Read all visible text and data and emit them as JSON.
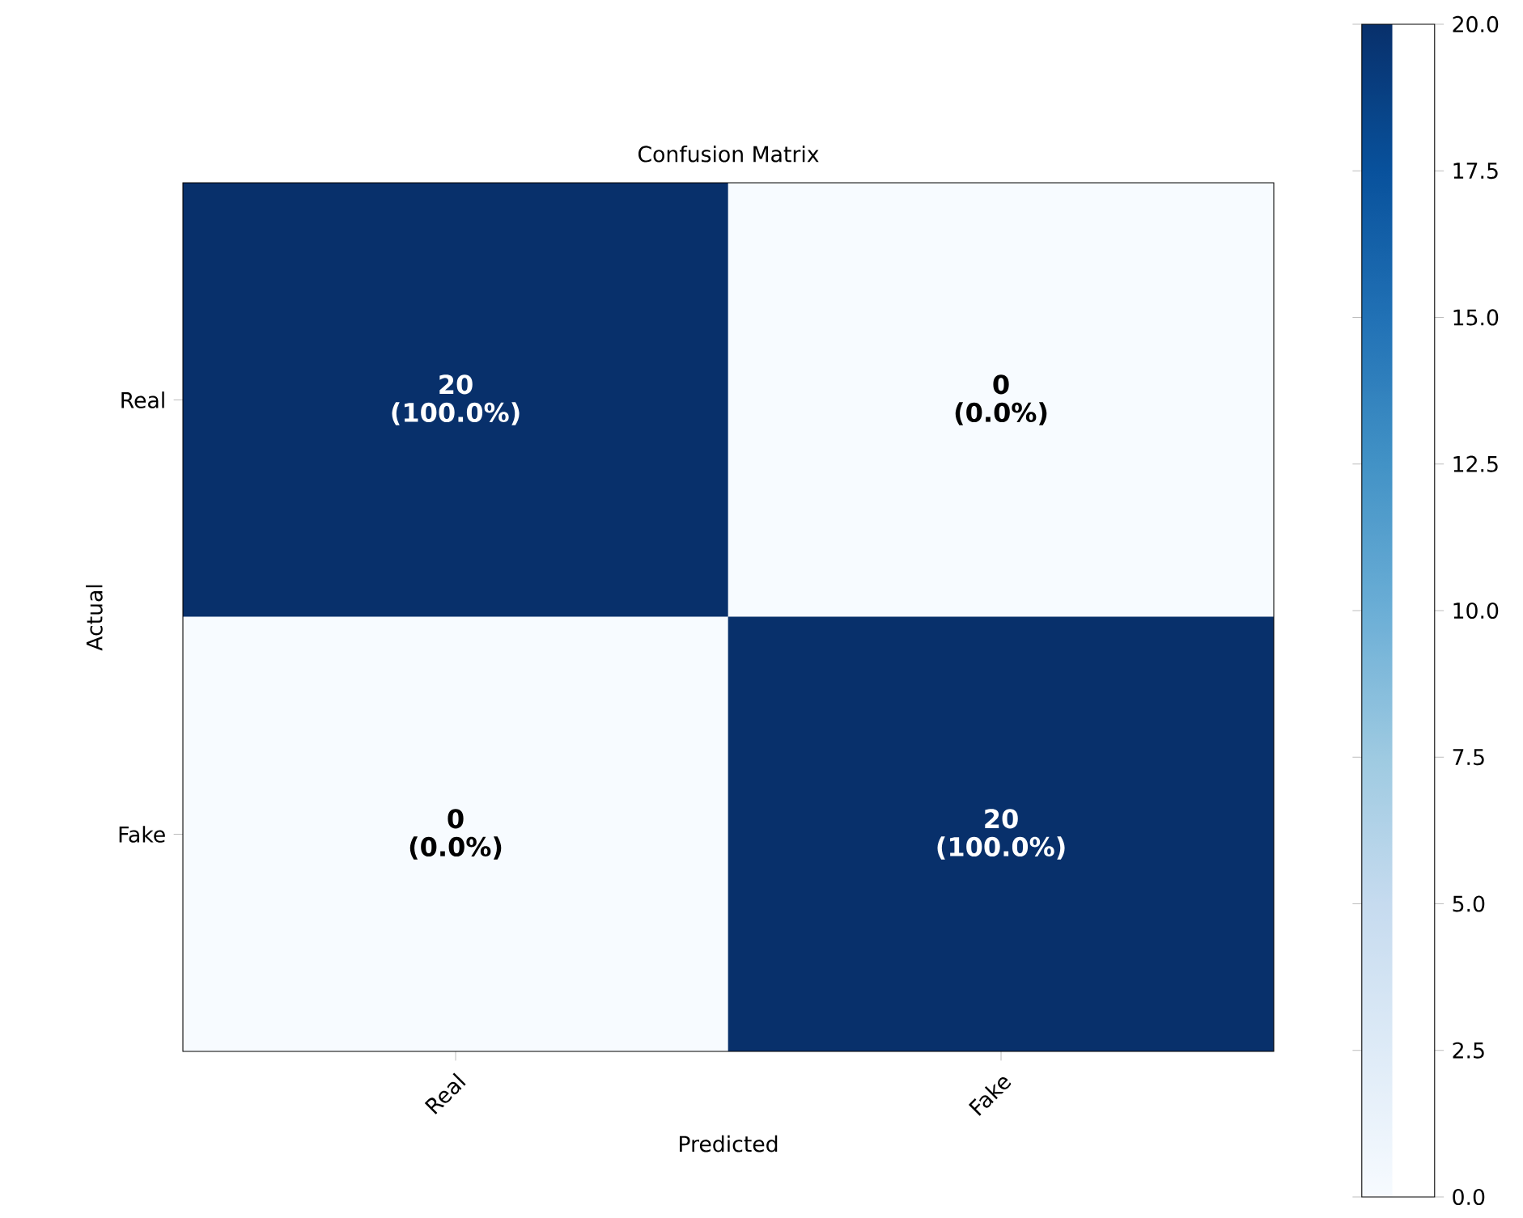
{
  "chart_data": {
    "type": "heatmap",
    "title": "Confusion Matrix",
    "xlabel": "Predicted",
    "ylabel": "Actual",
    "categories": [
      "Real",
      "Fake"
    ],
    "y_categories": [
      "Real",
      "Fake"
    ],
    "cells": [
      [
        20,
        0
      ],
      [
        0,
        20
      ]
    ],
    "cell_labels": [
      [
        "20 (100.0%)",
        "0 (0.0%)"
      ],
      [
        "0 (0.0%)",
        "20 (100.0%)"
      ]
    ],
    "clim": [
      0,
      20
    ],
    "cticks": [
      {
        "value": 0,
        "label": "0.0"
      },
      2.5,
      {
        "value": 5,
        "label": "5.0"
      },
      7.5,
      {
        "value": 10,
        "label": "10.0"
      },
      12.5,
      {
        "value": 15,
        "label": "15.0"
      },
      17.5,
      {
        "value": 20,
        "label": "20.0"
      }
    ]
  }
}
